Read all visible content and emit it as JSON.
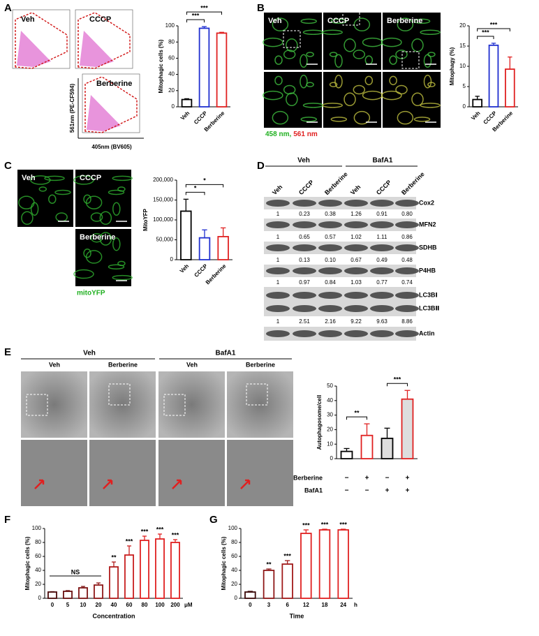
{
  "panels": {
    "labels": [
      "A",
      "B",
      "C",
      "D",
      "E",
      "F",
      "G"
    ]
  },
  "flow": {
    "samples": [
      "Veh",
      "CCCP",
      "Berberine"
    ],
    "y_label": "561nm (PE-CF594)",
    "x_label": "405nm (BV605)"
  },
  "confocal": {
    "samples": [
      "Veh",
      "CCCP",
      "Berberine"
    ],
    "channels": [
      "458 nm,",
      "561 nm"
    ]
  },
  "mito_yfp": {
    "samples": [
      "Veh",
      "CCCP",
      "Berberine"
    ],
    "stain": "mitoYFP"
  },
  "blot": {
    "groups": [
      "Veh",
      "BafA1"
    ],
    "lanes": [
      "Veh",
      "CCCP",
      "Berberine",
      "Veh",
      "CCCP",
      "Berberine"
    ],
    "rows": [
      {
        "name": "Cox2",
        "quant": [
          "1",
          "0.23",
          "0.38",
          "1.26",
          "0.91",
          "0.80"
        ]
      },
      {
        "name": "MFN2",
        "quant": [
          "1",
          "0.65",
          "0.57",
          "1.02",
          "1.11",
          "0.86"
        ]
      },
      {
        "name": "SDHB",
        "quant": [
          "1",
          "0.13",
          "0.10",
          "0.67",
          "0.49",
          "0.48"
        ]
      },
      {
        "name": "P4HB",
        "quant": [
          "1",
          "0.97",
          "0.84",
          "1.03",
          "0.77",
          "0.74"
        ]
      },
      {
        "name": "LC3BⅠ"
      },
      {
        "name": "LC3BⅡ",
        "quant": [
          "1",
          "2.51",
          "2.16",
          "9.22",
          "9.63",
          "8.86"
        ]
      },
      {
        "name": "Actin"
      }
    ]
  },
  "em": {
    "groups": [
      "Veh",
      "BafA1"
    ],
    "columns": [
      "Veh",
      "Berberine",
      "Veh",
      "Berberine"
    ]
  },
  "chart_data": [
    {
      "type": "bar",
      "ylabel": "Mitophagic cells (%)",
      "categories": [
        "Veh",
        "CCCP",
        "Berberine"
      ],
      "values": [
        9,
        97,
        91
      ],
      "errors": [
        1,
        2,
        1
      ],
      "colors": [
        "#000000",
        "#1f2fd0",
        "#e02020"
      ],
      "ylim": [
        0,
        100
      ],
      "yticks": [
        0,
        20,
        40,
        60,
        80,
        100
      ],
      "comparisons": [
        {
          "from": 0,
          "to": 1,
          "label": "***"
        },
        {
          "from": 0,
          "to": 2,
          "label": "***"
        }
      ]
    },
    {
      "type": "bar",
      "ylabel": "Mitophagy (%)",
      "categories": [
        "Veh",
        "CCCP",
        "Berberine"
      ],
      "values": [
        1.8,
        15.2,
        9.3
      ],
      "errors": [
        0.8,
        0.5,
        3
      ],
      "colors": [
        "#000000",
        "#1f2fd0",
        "#e02020"
      ],
      "ylim": [
        0,
        20
      ],
      "yticks": [
        0,
        5,
        10,
        15,
        20
      ],
      "comparisons": [
        {
          "from": 0,
          "to": 1,
          "label": "***"
        },
        {
          "from": 0,
          "to": 2,
          "label": "***"
        }
      ]
    },
    {
      "type": "bar",
      "ylabel": "MitoYFP",
      "categories": [
        "Veh",
        "CCCP",
        "Berberine"
      ],
      "values": [
        122000,
        55000,
        58000
      ],
      "errors": [
        30000,
        20000,
        22000
      ],
      "colors": [
        "#000000",
        "#1f2fd0",
        "#e02020"
      ],
      "ylim": [
        0,
        200000
      ],
      "yticks": [
        0,
        {
          "value": 50000,
          "label": "50,000"
        },
        {
          "value": 100000,
          "label": "100,000"
        },
        {
          "value": 150000,
          "label": "150,000"
        },
        {
          "value": 200000,
          "label": "200,000"
        }
      ],
      "comparisons": [
        {
          "from": 0,
          "to": 1,
          "label": "*"
        },
        {
          "from": 0,
          "to": 2,
          "label": "*"
        }
      ]
    },
    {
      "type": "bar",
      "ylabel": "Autophagosome/cell",
      "categories": [
        null,
        null,
        null,
        null
      ],
      "values": [
        5,
        16,
        14,
        41
      ],
      "errors": [
        2,
        8,
        7,
        6
      ],
      "colors": [
        "#000000",
        "#e02020",
        "#000000",
        "#e02020"
      ],
      "fills": [
        "#ffffff",
        "#ffffff",
        "#dddddd",
        "#dddddd"
      ],
      "ylim": [
        0,
        50
      ],
      "yticks": [
        0,
        10,
        20,
        30,
        40,
        50
      ],
      "comparisons": [
        {
          "from": 0,
          "to": 1,
          "label": "**"
        },
        {
          "from": 2,
          "to": 3,
          "label": "***"
        }
      ],
      "conditions": [
        {
          "name": "Berberine",
          "signs": [
            "−",
            "+",
            "−",
            "+"
          ]
        },
        {
          "name": "BafA1",
          "signs": [
            "−",
            "−",
            "+",
            "+"
          ]
        }
      ]
    },
    {
      "type": "bar",
      "ylabel": "Mitophagic cells (%)",
      "xlabel": "Concentration",
      "x_unit": "μM",
      "categories": [
        "0",
        "5",
        "10",
        "20",
        "40",
        "60",
        "80",
        "100",
        "200"
      ],
      "values": [
        9,
        10,
        15,
        19,
        45,
        62,
        83,
        85,
        80
      ],
      "errors": [
        0.5,
        1,
        2,
        3,
        7,
        13,
        6,
        7,
        4
      ],
      "colors": [
        "#4a0a0a",
        "#6a1010",
        "#7e1414",
        "#8e1818",
        "#b01c1c",
        "#c81e1e",
        "#e02020",
        "#e02020",
        "#e02020"
      ],
      "ylim": [
        0,
        100
      ],
      "yticks": [
        0,
        20,
        40,
        60,
        80,
        100
      ],
      "comparisons": [
        {
          "from": 0,
          "to": 3,
          "label": "NS",
          "style": "line"
        }
      ],
      "bar_labels": [
        null,
        null,
        null,
        null,
        "**",
        "***",
        "***",
        "***",
        "***"
      ]
    },
    {
      "type": "bar",
      "ylabel": "Mitophagic cells (%)",
      "xlabel": "Time",
      "x_unit": "h",
      "categories": [
        "0",
        "3",
        "6",
        "12",
        "18",
        "24"
      ],
      "values": [
        9,
        40,
        49,
        93,
        98,
        98
      ],
      "errors": [
        1,
        2,
        5,
        5,
        1,
        1
      ],
      "colors": [
        "#3a0808",
        "#8e1818",
        "#a01a1a",
        "#e02020",
        "#e02020",
        "#e02020"
      ],
      "ylim": [
        0,
        100
      ],
      "yticks": [
        0,
        20,
        40,
        60,
        80,
        100
      ],
      "bar_labels": [
        null,
        "**",
        "***",
        "***",
        "***",
        "***"
      ]
    }
  ]
}
